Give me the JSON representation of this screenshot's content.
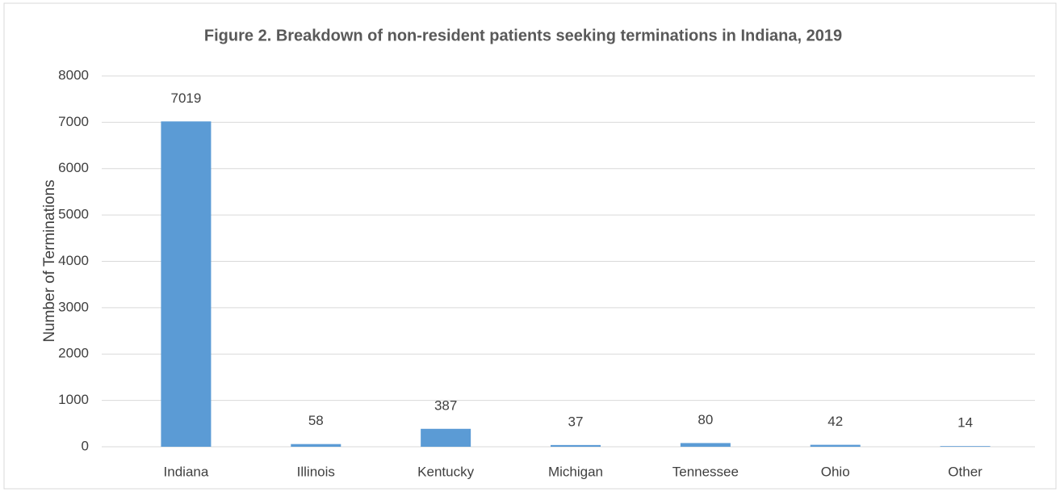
{
  "chart_data": {
    "type": "bar",
    "title": "Figure 2. Breakdown of non-resident patients seeking terminations in Indiana, 2019",
    "y_label": "Number of Terminations",
    "categories": [
      "Indiana",
      "Illinois",
      "Kentucky",
      "Michigan",
      "Tennessee",
      "Ohio",
      "Other"
    ],
    "values": [
      7019,
      58,
      387,
      37,
      80,
      42,
      14
    ],
    "color": "#5b9bd5",
    "ylim": [
      0,
      8000
    ],
    "yticks": [
      0,
      1000,
      2000,
      3000,
      4000,
      5000,
      6000,
      7000,
      8000
    ],
    "grid": true,
    "data_labels": true
  }
}
